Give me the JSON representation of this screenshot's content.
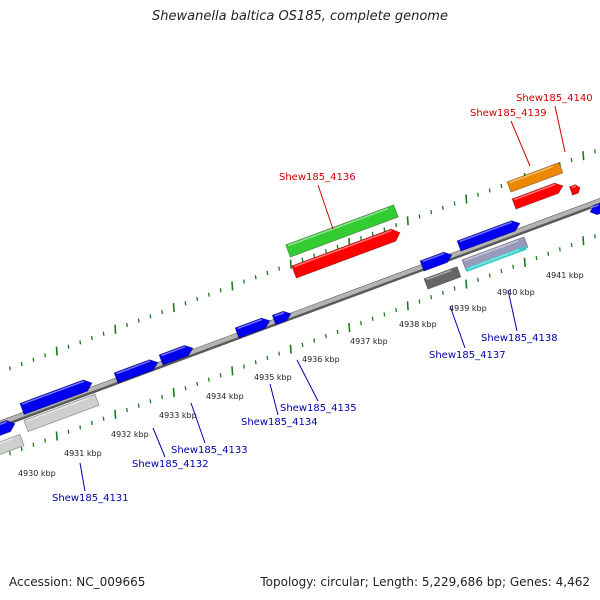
{
  "title": "Shewanella baltica OS185, complete genome",
  "footer": {
    "accession": "Accession: NC_009665",
    "summary": "Topology: circular; Length: 5,229,686 bp; Genes: 4,462"
  },
  "colors": {
    "backbone": "#8a8a8a",
    "tick": "#1c7a1c",
    "forward_gene": "#0000ee",
    "reverse_gene": "#ff0000",
    "label_blue": "#0000aa",
    "label_red": "#cc0000",
    "green_gene": "#33cc33",
    "orange_gene": "#ee8800",
    "grey_gene": "#666666",
    "light_gene": "#cfcfcf"
  },
  "scale_labels": [
    "4930 kbp",
    "4931 kbp",
    "4932 kbp",
    "4933 kbp",
    "4934 kbp",
    "4935 kbp",
    "4936 kbp",
    "4937 kbp",
    "4938 kbp",
    "4939 kbp",
    "4940 kbp",
    "4941 kbp"
  ],
  "gene_labels": [
    {
      "text": "Shew185_4131",
      "color": "blue"
    },
    {
      "text": "Shew185_4132",
      "color": "blue"
    },
    {
      "text": "Shew185_4133",
      "color": "blue"
    },
    {
      "text": "Shew185_4134",
      "color": "blue"
    },
    {
      "text": "Shew185_4135",
      "color": "blue"
    },
    {
      "text": "Shew185_4136",
      "color": "red"
    },
    {
      "text": "Shew185_4137",
      "color": "blue"
    },
    {
      "text": "Shew185_4138",
      "color": "blue"
    },
    {
      "text": "Shew185_4139",
      "color": "red"
    },
    {
      "text": "Shew185_4140",
      "color": "red"
    }
  ]
}
